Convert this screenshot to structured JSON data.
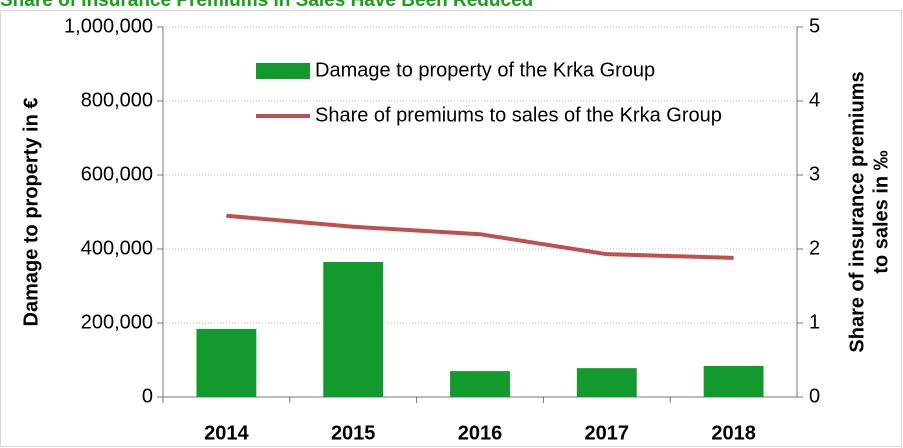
{
  "chart_data": {
    "type": "bar-line",
    "title": "Share of Insurance Premiums in Sales Have Been Reduced",
    "ylabel": "Damage to property in €",
    "y2label": [
      "Share of insurance premiums",
      "to sales in ‰"
    ],
    "categories": [
      "2014",
      "2015",
      "2016",
      "2017",
      "2018"
    ],
    "series": [
      {
        "name": "Damage to property of the Krka Group",
        "type": "bar",
        "color": "#129a2c",
        "values": [
          184000,
          365000,
          70000,
          78000,
          84000
        ]
      },
      {
        "name": "Share of premiums to sales of the Krka Group",
        "type": "line",
        "axis": "y2",
        "color": "#c0504d",
        "values": [
          2.45,
          2.3,
          2.2,
          1.93,
          1.88
        ]
      }
    ],
    "ylim": [
      0,
      1000000
    ],
    "yticks": [
      0,
      {
        "value": 200000,
        "label": "200,000"
      },
      {
        "value": 400000,
        "label": "400,000"
      },
      {
        "value": 600000,
        "label": "600,000"
      },
      {
        "value": 800000,
        "label": "800,000"
      },
      {
        "value": 1000000,
        "label": "1,000,000"
      }
    ],
    "y2lim": [
      0,
      5
    ],
    "y2ticks": [
      0,
      1,
      2,
      3,
      4,
      5
    ],
    "grid": true,
    "legend": "top-left"
  }
}
